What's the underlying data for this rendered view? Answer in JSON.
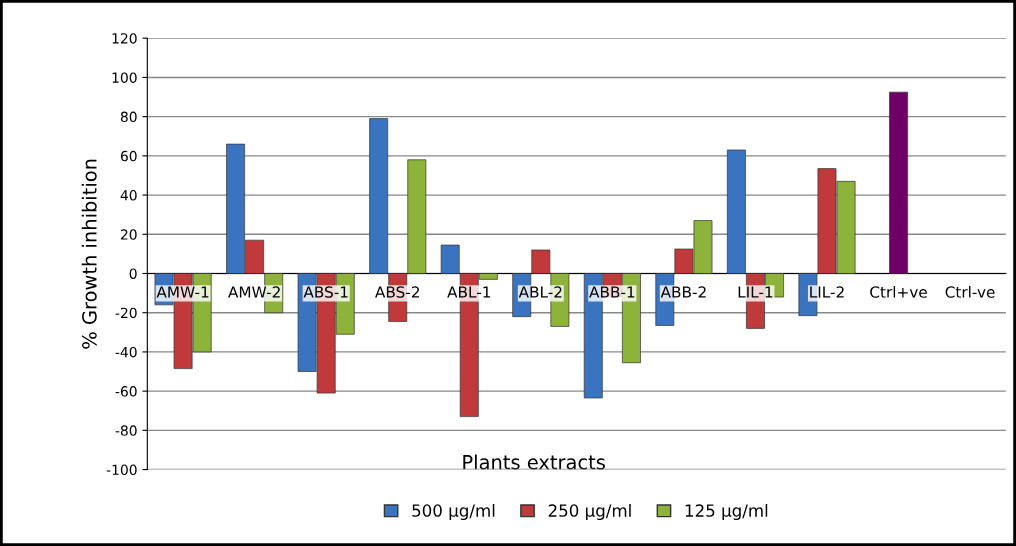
{
  "chart_data": {
    "type": "bar",
    "xlabel": "Plants extracts",
    "ylabel": "% Growth inhibition",
    "categories": [
      "AMW-1",
      "AMW-2",
      "ABS-1",
      "ABS-2",
      "ABL-1",
      "ABL-2",
      "ABB-1",
      "ABB-2",
      "LIL-1",
      "LIL-2",
      "Ctrl+ve",
      "Ctrl-ve"
    ],
    "series": [
      {
        "name": "500 µg/ml",
        "color": "#3a74c0",
        "values": [
          -16,
          66,
          -50,
          79,
          14.5,
          -22,
          -63.5,
          -26.5,
          63,
          -21.5,
          null,
          null
        ]
      },
      {
        "name": "250 µg/ml",
        "color": "#c0393b",
        "colors": [
          "#c0393b",
          "#c0393b",
          "#c0393b",
          "#c0393b",
          "#c0393b",
          "#c0393b",
          "#c0393b",
          "#c0393b",
          "#c0393b",
          "#c0393b",
          "#6e0066",
          "#c0393b"
        ],
        "values": [
          -48.5,
          17,
          -61,
          -24.5,
          -73,
          12,
          -12,
          12.5,
          -28,
          53.5,
          92.5,
          null
        ]
      },
      {
        "name": "125 µg/ml",
        "color": "#8db33a",
        "values": [
          -40,
          -20,
          -31,
          58,
          -3,
          -27,
          -45.5,
          27,
          -12,
          47,
          null,
          null
        ]
      }
    ],
    "ylim": [
      -100,
      120
    ],
    "yticks": [
      -100,
      -80,
      -60,
      -40,
      -20,
      0,
      20,
      40,
      60,
      80,
      100,
      120
    ],
    "grid": "y",
    "legend": "bottom"
  }
}
